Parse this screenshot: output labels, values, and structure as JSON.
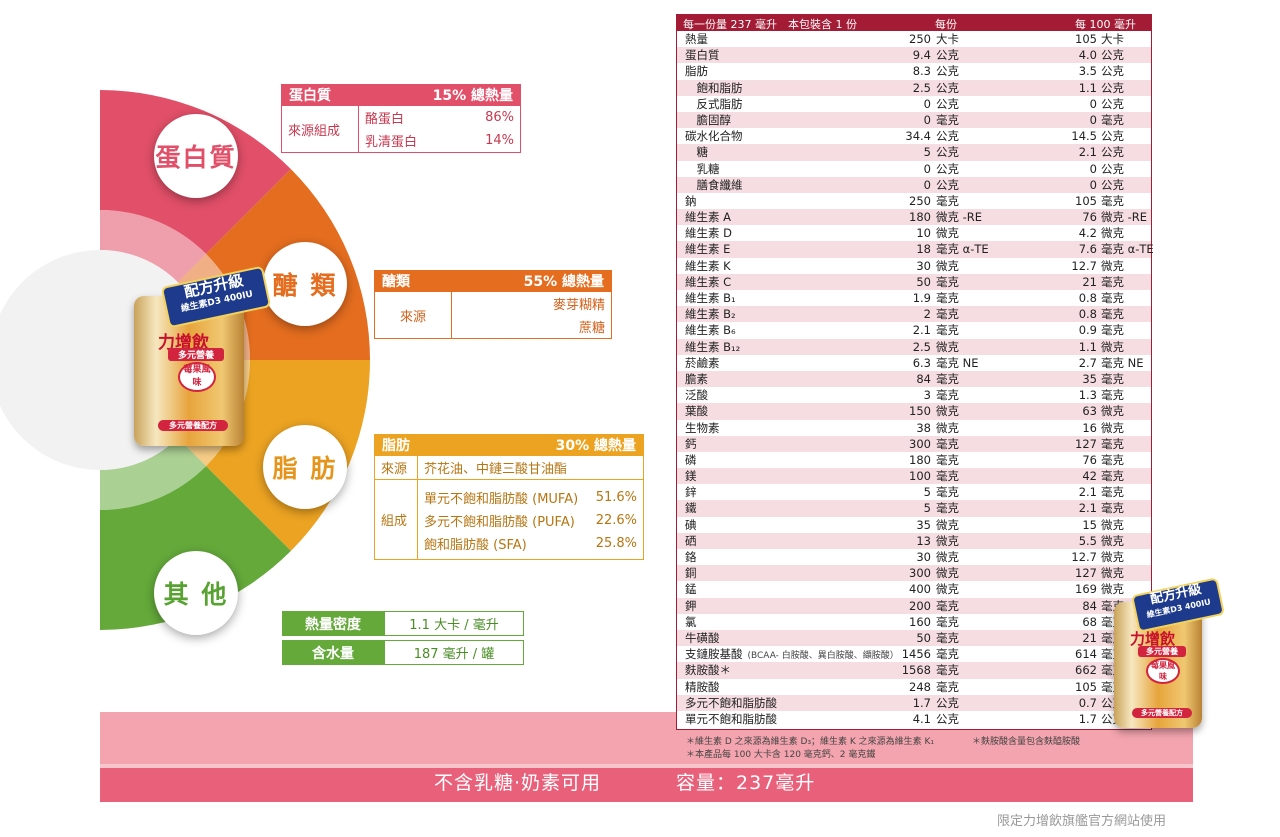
{
  "colors": {
    "protein": "#e14f68",
    "carb": "#e46d1f",
    "fat": "#eca322",
    "other": "#64a93a",
    "table_header": "#a31b35",
    "row_stripe": "#f6dde2",
    "band_light": "#f3a4ae",
    "band_dark": "#e9607a"
  },
  "donut_labels": {
    "protein": "蛋白質",
    "carb": "醣 類",
    "fat": "脂 肪",
    "other": "其 他"
  },
  "protein_box": {
    "title": "蛋白質",
    "percent": "15% 總熱量",
    "row_label": "來源組成",
    "items": [
      {
        "name": "酪蛋白",
        "value": "86%"
      },
      {
        "name": "乳清蛋白",
        "value": "14%"
      }
    ]
  },
  "carb_box": {
    "title": "醣類",
    "percent": "55% 總熱量",
    "row_label": "來源",
    "items": [
      "麥芽糊精",
      "蔗糖"
    ]
  },
  "fat_box": {
    "title": "脂肪",
    "percent": "30% 總熱量",
    "source_label": "來源",
    "source_value": "芥花油、中鏈三酸甘油酯",
    "comp_label": "組成",
    "items": [
      {
        "name": "單元不飽和脂肪酸 (MUFA)",
        "value": "51.6%"
      },
      {
        "name": "多元不飽和脂肪酸 (PUFA)",
        "value": "22.6%"
      },
      {
        "name": "飽和脂肪酸 (SFA)",
        "value": "25.8%"
      }
    ]
  },
  "other_box": {
    "rows": [
      {
        "label": "熱量密度",
        "value": "1.1 大卡 / 毫升"
      },
      {
        "label": "含水量",
        "value": "187 毫升 / 罐"
      }
    ]
  },
  "product": {
    "badge_line1": "配方升級",
    "badge_line2": "維生素D3 400IU",
    "brand": "力增飲",
    "subtitle": "多元營養",
    "flavor": "莓果風味",
    "tag": "多元營養配方"
  },
  "nutrition": {
    "header": {
      "serving": "每一份量 237 毫升　本包裝含 1 份",
      "per_serving": "每份",
      "per_100": "每 100 毫升"
    },
    "rows": [
      {
        "name": "熱量",
        "v1": "250",
        "u1": "大卡",
        "v2": "105",
        "u2": "大卡"
      },
      {
        "name": "蛋白質",
        "v1": "9.4",
        "u1": "公克",
        "v2": "4.0",
        "u2": "公克"
      },
      {
        "name": "脂肪",
        "v1": "8.3",
        "u1": "公克",
        "v2": "3.5",
        "u2": "公克"
      },
      {
        "name": "　飽和脂肪",
        "v1": "2.5",
        "u1": "公克",
        "v2": "1.1",
        "u2": "公克"
      },
      {
        "name": "　反式脂肪",
        "v1": "0",
        "u1": "公克",
        "v2": "0",
        "u2": "公克"
      },
      {
        "name": "　膽固醇",
        "v1": "0",
        "u1": "毫克",
        "v2": "0",
        "u2": "毫克"
      },
      {
        "name": "碳水化合物",
        "v1": "34.4",
        "u1": "公克",
        "v2": "14.5",
        "u2": "公克"
      },
      {
        "name": "　糖",
        "v1": "5",
        "u1": "公克",
        "v2": "2.1",
        "u2": "公克"
      },
      {
        "name": "　乳糖",
        "v1": "0",
        "u1": "公克",
        "v2": "0",
        "u2": "公克"
      },
      {
        "name": "　膳食纖維",
        "v1": "0",
        "u1": "公克",
        "v2": "0",
        "u2": "公克"
      },
      {
        "name": "鈉",
        "v1": "250",
        "u1": "毫克",
        "v2": "105",
        "u2": "毫克"
      },
      {
        "name": "維生素 A",
        "v1": "180",
        "u1": "微克 -RE",
        "v2": "76",
        "u2": "微克 -RE"
      },
      {
        "name": "維生素 D",
        "v1": "10",
        "u1": "微克",
        "v2": "4.2",
        "u2": "微克"
      },
      {
        "name": "維生素 E",
        "v1": "18",
        "u1": "毫克 α-TE",
        "v2": "7.6",
        "u2": "毫克 α-TE"
      },
      {
        "name": "維生素 K",
        "v1": "30",
        "u1": "微克",
        "v2": "12.7",
        "u2": "微克"
      },
      {
        "name": "維生素 C",
        "v1": "50",
        "u1": "毫克",
        "v2": "21",
        "u2": "毫克"
      },
      {
        "name": "維生素 B₁",
        "v1": "1.9",
        "u1": "毫克",
        "v2": "0.8",
        "u2": "毫克"
      },
      {
        "name": "維生素 B₂",
        "v1": "2",
        "u1": "毫克",
        "v2": "0.8",
        "u2": "毫克"
      },
      {
        "name": "維生素 B₆",
        "v1": "2.1",
        "u1": "毫克",
        "v2": "0.9",
        "u2": "毫克"
      },
      {
        "name": "維生素 B₁₂",
        "v1": "2.5",
        "u1": "微克",
        "v2": "1.1",
        "u2": "微克"
      },
      {
        "name": "菸鹼素",
        "v1": "6.3",
        "u1": "毫克 NE",
        "v2": "2.7",
        "u2": "毫克 NE"
      },
      {
        "name": "膽素",
        "v1": "84",
        "u1": "毫克",
        "v2": "35",
        "u2": "毫克"
      },
      {
        "name": "泛酸",
        "v1": "3",
        "u1": "毫克",
        "v2": "1.3",
        "u2": "毫克"
      },
      {
        "name": "葉酸",
        "v1": "150",
        "u1": "微克",
        "v2": "63",
        "u2": "微克"
      },
      {
        "name": "生物素",
        "v1": "38",
        "u1": "微克",
        "v2": "16",
        "u2": "微克"
      },
      {
        "name": "鈣",
        "v1": "300",
        "u1": "毫克",
        "v2": "127",
        "u2": "毫克"
      },
      {
        "name": "磷",
        "v1": "180",
        "u1": "毫克",
        "v2": "76",
        "u2": "毫克"
      },
      {
        "name": "鎂",
        "v1": "100",
        "u1": "毫克",
        "v2": "42",
        "u2": "毫克"
      },
      {
        "name": "鋅",
        "v1": "5",
        "u1": "毫克",
        "v2": "2.1",
        "u2": "毫克"
      },
      {
        "name": "鐵",
        "v1": "5",
        "u1": "毫克",
        "v2": "2.1",
        "u2": "毫克"
      },
      {
        "name": "碘",
        "v1": "35",
        "u1": "微克",
        "v2": "15",
        "u2": "微克"
      },
      {
        "name": "硒",
        "v1": "13",
        "u1": "微克",
        "v2": "5.5",
        "u2": "微克"
      },
      {
        "name": "鉻",
        "v1": "30",
        "u1": "微克",
        "v2": "12.7",
        "u2": "微克"
      },
      {
        "name": "銅",
        "v1": "300",
        "u1": "微克",
        "v2": "127",
        "u2": "微克"
      },
      {
        "name": "錳",
        "v1": "400",
        "u1": "微克",
        "v2": "169",
        "u2": "微克"
      },
      {
        "name": "鉀",
        "v1": "200",
        "u1": "毫克",
        "v2": "84",
        "u2": "毫克"
      },
      {
        "name": "氯",
        "v1": "160",
        "u1": "毫克",
        "v2": "68",
        "u2": "毫克"
      },
      {
        "name": "牛磺酸",
        "v1": "50",
        "u1": "毫克",
        "v2": "21",
        "u2": "毫克"
      },
      {
        "name": "支鏈胺基酸",
        "note": "(BCAA- 白胺酸、異白胺酸、纈胺酸）",
        "v1": "1456",
        "u1": "毫克",
        "v2": "614",
        "u2": "毫克"
      },
      {
        "name": "麩胺酸＊",
        "v1": "1568",
        "u1": "毫克",
        "v2": "662",
        "u2": "毫克"
      },
      {
        "name": "精胺酸",
        "v1": "248",
        "u1": "毫克",
        "v2": "105",
        "u2": "毫克"
      },
      {
        "name": "多元不飽和脂肪酸",
        "v1": "1.7",
        "u1": "公克",
        "v2": "0.7",
        "u2": "公克"
      },
      {
        "name": "單元不飽和脂肪酸",
        "v1": "4.1",
        "u1": "公克",
        "v2": "1.7",
        "u2": "公克"
      }
    ]
  },
  "footnotes": {
    "note1": "＊維生素 D 之來源為維生素 D₃；維生素 K 之來源為維生素 K₁",
    "note2": "＊麩胺酸含量包含麩醯胺酸",
    "note3": "＊本產品每 100 大卡含 120 毫克鈣、2 毫克鐵"
  },
  "bottom": {
    "label": "不含乳糖‧奶素可用",
    "capacity": "容量：237毫升"
  },
  "official": "限定力增飲旗艦官方網站使用"
}
